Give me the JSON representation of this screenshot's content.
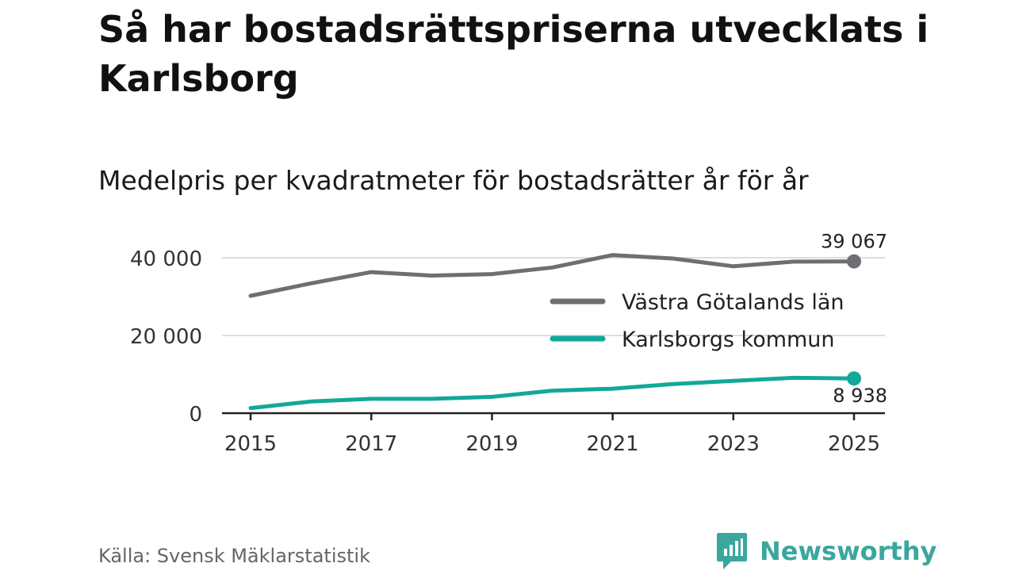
{
  "title": "Så har bostadsrättspriserna utvecklats i Karlsborg",
  "subtitle": "Medelpris per kvadratmeter för bostadsrätter år för år",
  "source": "Källa: Svensk Mäklarstatistik",
  "brand": {
    "name": "Newsworthy",
    "color": "#3aa79f"
  },
  "chart_data": {
    "type": "line",
    "x": [
      2015,
      2016,
      2017,
      2018,
      2019,
      2020,
      2021,
      2022,
      2023,
      2024,
      2025
    ],
    "x_tick_labels": [
      "2015",
      "2017",
      "2019",
      "2021",
      "2023",
      "2025"
    ],
    "x_tick_values": [
      2015,
      2017,
      2019,
      2021,
      2023,
      2025
    ],
    "y_tick_labels": [
      "0",
      "20 000",
      "40 000"
    ],
    "y_tick_values": [
      0,
      20000,
      40000
    ],
    "ylim": [
      0,
      40000
    ],
    "xlim": [
      2015,
      2025
    ],
    "grid": true,
    "legend_position": "right-middle",
    "series": [
      {
        "name": "Västra Götalands län",
        "color": "#6f6f73",
        "values": [
          30200,
          33400,
          36300,
          35400,
          35800,
          37500,
          40700,
          39800,
          37800,
          39000,
          39067
        ],
        "end_label": "39 067"
      },
      {
        "name": "Karlsborgs kommun",
        "color": "#12a89b",
        "values": [
          1300,
          3000,
          3700,
          3700,
          4200,
          5800,
          6300,
          7500,
          8300,
          9100,
          8938
        ],
        "end_label": "8 938"
      }
    ]
  }
}
